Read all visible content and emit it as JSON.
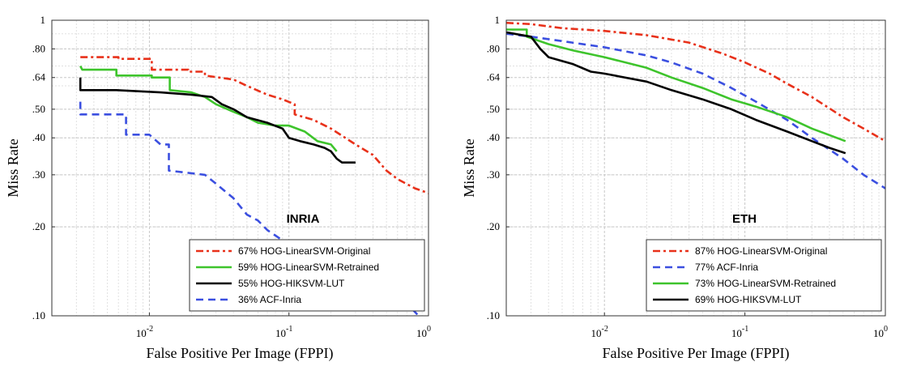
{
  "chart_data": [
    {
      "type": "line",
      "title": "INRIA",
      "xlabel": "False Positive Per Image (FPPI)",
      "ylabel": "Miss Rate",
      "x_scale": "log",
      "y_scale": "log",
      "xlim": [
        0.002,
        1
      ],
      "ylim": [
        0.1,
        1
      ],
      "x_ticks": [
        {
          "value": 0.01,
          "base": "10",
          "exp": "-2"
        },
        {
          "value": 0.1,
          "base": "10",
          "exp": "-1"
        },
        {
          "value": 1,
          "base": "10",
          "exp": "0"
        }
      ],
      "y_ticks": [
        {
          "value": 1,
          "label": "1"
        },
        {
          "value": 0.8,
          "label": ".80"
        },
        {
          "value": 0.64,
          "label": ".64"
        },
        {
          "value": 0.5,
          "label": ".50"
        },
        {
          "value": 0.4,
          "label": ".40"
        },
        {
          "value": 0.3,
          "label": ".30"
        },
        {
          "value": 0.2,
          "label": ".20"
        },
        {
          "value": 0.1,
          "label": ".10"
        }
      ],
      "grid": true,
      "legend_position": "bottom-right",
      "series": [
        {
          "name": "67% HOG-LinearSVM-Original",
          "color": "#e8311a",
          "style": "dashdot",
          "points": [
            [
              0.0032,
              0.75
            ],
            [
              0.006,
              0.75
            ],
            [
              0.006,
              0.74
            ],
            [
              0.0104,
              0.74
            ],
            [
              0.0104,
              0.68
            ],
            [
              0.019,
              0.68
            ],
            [
              0.019,
              0.67
            ],
            [
              0.025,
              0.67
            ],
            [
              0.025,
              0.65
            ],
            [
              0.04,
              0.63
            ],
            [
              0.05,
              0.6
            ],
            [
              0.07,
              0.56
            ],
            [
              0.09,
              0.54
            ],
            [
              0.11,
              0.52
            ],
            [
              0.11,
              0.48
            ],
            [
              0.15,
              0.46
            ],
            [
              0.2,
              0.43
            ],
            [
              0.3,
              0.38
            ],
            [
              0.4,
              0.35
            ],
            [
              0.5,
              0.31
            ],
            [
              0.6,
              0.29
            ],
            [
              0.8,
              0.27
            ],
            [
              1.0,
              0.26
            ]
          ]
        },
        {
          "name": "59% HOG-LinearSVM-Retrained",
          "color": "#3ec42c",
          "style": "solid",
          "points": [
            [
              0.0032,
              0.7
            ],
            [
              0.0033,
              0.68
            ],
            [
              0.0058,
              0.68
            ],
            [
              0.0058,
              0.65
            ],
            [
              0.0104,
              0.65
            ],
            [
              0.0104,
              0.64
            ],
            [
              0.014,
              0.64
            ],
            [
              0.014,
              0.58
            ],
            [
              0.02,
              0.57
            ],
            [
              0.025,
              0.55
            ],
            [
              0.03,
              0.52
            ],
            [
              0.04,
              0.49
            ],
            [
              0.05,
              0.47
            ],
            [
              0.06,
              0.45
            ],
            [
              0.08,
              0.44
            ],
            [
              0.1,
              0.44
            ],
            [
              0.13,
              0.42
            ],
            [
              0.16,
              0.39
            ],
            [
              0.2,
              0.38
            ],
            [
              0.22,
              0.36
            ]
          ]
        },
        {
          "name": "55% HOG-HIKSVM-LUT",
          "color": "#000000",
          "style": "solid",
          "points": [
            [
              0.0032,
              0.64
            ],
            [
              0.0032,
              0.58
            ],
            [
              0.0058,
              0.58
            ],
            [
              0.012,
              0.57
            ],
            [
              0.02,
              0.56
            ],
            [
              0.028,
              0.55
            ],
            [
              0.033,
              0.52
            ],
            [
              0.04,
              0.5
            ],
            [
              0.05,
              0.47
            ],
            [
              0.07,
              0.45
            ],
            [
              0.09,
              0.43
            ],
            [
              0.1,
              0.4
            ],
            [
              0.12,
              0.39
            ],
            [
              0.15,
              0.38
            ],
            [
              0.18,
              0.37
            ],
            [
              0.2,
              0.36
            ],
            [
              0.22,
              0.34
            ],
            [
              0.24,
              0.33
            ],
            [
              0.3,
              0.33
            ]
          ]
        },
        {
          "name": "36% ACF-Inria",
          "color": "#3b4fe0",
          "style": "dashed",
          "points": [
            [
              0.0032,
              0.53
            ],
            [
              0.0032,
              0.48
            ],
            [
              0.0068,
              0.48
            ],
            [
              0.0068,
              0.41
            ],
            [
              0.01,
              0.41
            ],
            [
              0.012,
              0.38
            ],
            [
              0.0138,
              0.38
            ],
            [
              0.0138,
              0.31
            ],
            [
              0.025,
              0.3
            ],
            [
              0.03,
              0.28
            ],
            [
              0.04,
              0.25
            ],
            [
              0.05,
              0.22
            ],
            [
              0.06,
              0.21
            ],
            [
              0.07,
              0.195
            ],
            [
              0.09,
              0.18
            ],
            [
              0.12,
              0.17
            ],
            [
              0.2,
              0.15
            ],
            [
              0.3,
              0.135
            ],
            [
              0.5,
              0.12
            ],
            [
              0.7,
              0.11
            ],
            [
              0.85,
              0.1
            ]
          ]
        }
      ]
    },
    {
      "type": "line",
      "title": "ETH",
      "xlabel": "False Positive Per Image (FPPI)",
      "ylabel": "Miss Rate",
      "x_scale": "log",
      "y_scale": "log",
      "xlim": [
        0.002,
        1
      ],
      "ylim": [
        0.1,
        1
      ],
      "x_ticks": [
        {
          "value": 0.01,
          "base": "10",
          "exp": "-2"
        },
        {
          "value": 0.1,
          "base": "10",
          "exp": "-1"
        },
        {
          "value": 1,
          "base": "10",
          "exp": "0"
        }
      ],
      "y_ticks": [
        {
          "value": 1,
          "label": "1"
        },
        {
          "value": 0.8,
          "label": ".80"
        },
        {
          "value": 0.64,
          "label": ".64"
        },
        {
          "value": 0.5,
          "label": ".50"
        },
        {
          "value": 0.4,
          "label": ".40"
        },
        {
          "value": 0.3,
          "label": ".30"
        },
        {
          "value": 0.2,
          "label": ".20"
        },
        {
          "value": 0.1,
          "label": ".10"
        }
      ],
      "grid": true,
      "legend_position": "bottom-right",
      "series": [
        {
          "name": "87% HOG-LinearSVM-Original",
          "color": "#e8311a",
          "style": "dashdot",
          "points": [
            [
              0.002,
              0.98
            ],
            [
              0.003,
              0.97
            ],
            [
              0.005,
              0.94
            ],
            [
              0.01,
              0.92
            ],
            [
              0.02,
              0.89
            ],
            [
              0.04,
              0.84
            ],
            [
              0.07,
              0.77
            ],
            [
              0.1,
              0.72
            ],
            [
              0.15,
              0.66
            ],
            [
              0.2,
              0.61
            ],
            [
              0.3,
              0.55
            ],
            [
              0.5,
              0.47
            ],
            [
              0.7,
              0.43
            ],
            [
              1.0,
              0.39
            ]
          ]
        },
        {
          "name": "77% ACF-Inria",
          "color": "#3b4fe0",
          "style": "dashed",
          "points": [
            [
              0.002,
              0.9
            ],
            [
              0.003,
              0.88
            ],
            [
              0.005,
              0.85
            ],
            [
              0.01,
              0.81
            ],
            [
              0.02,
              0.76
            ],
            [
              0.03,
              0.72
            ],
            [
              0.05,
              0.66
            ],
            [
              0.08,
              0.59
            ],
            [
              0.12,
              0.53
            ],
            [
              0.2,
              0.46
            ],
            [
              0.3,
              0.4
            ],
            [
              0.5,
              0.34
            ],
            [
              0.7,
              0.3
            ],
            [
              1.0,
              0.27
            ]
          ]
        },
        {
          "name": "73% HOG-LinearSVM-Retrained",
          "color": "#3ec42c",
          "style": "solid",
          "points": [
            [
              0.002,
              0.93
            ],
            [
              0.0028,
              0.93
            ],
            [
              0.0028,
              0.88
            ],
            [
              0.004,
              0.83
            ],
            [
              0.006,
              0.79
            ],
            [
              0.01,
              0.75
            ],
            [
              0.02,
              0.69
            ],
            [
              0.03,
              0.64
            ],
            [
              0.05,
              0.59
            ],
            [
              0.08,
              0.54
            ],
            [
              0.12,
              0.51
            ],
            [
              0.2,
              0.47
            ],
            [
              0.3,
              0.43
            ],
            [
              0.52,
              0.39
            ]
          ]
        },
        {
          "name": "69% HOG-HIKSVM-LUT",
          "color": "#000000",
          "style": "solid",
          "points": [
            [
              0.002,
              0.91
            ],
            [
              0.003,
              0.88
            ],
            [
              0.0035,
              0.8
            ],
            [
              0.004,
              0.75
            ],
            [
              0.006,
              0.71
            ],
            [
              0.008,
              0.67
            ],
            [
              0.01,
              0.66
            ],
            [
              0.02,
              0.62
            ],
            [
              0.03,
              0.58
            ],
            [
              0.05,
              0.54
            ],
            [
              0.08,
              0.5
            ],
            [
              0.12,
              0.46
            ],
            [
              0.2,
              0.42
            ],
            [
              0.3,
              0.39
            ],
            [
              0.4,
              0.37
            ],
            [
              0.52,
              0.355
            ]
          ]
        }
      ]
    }
  ]
}
